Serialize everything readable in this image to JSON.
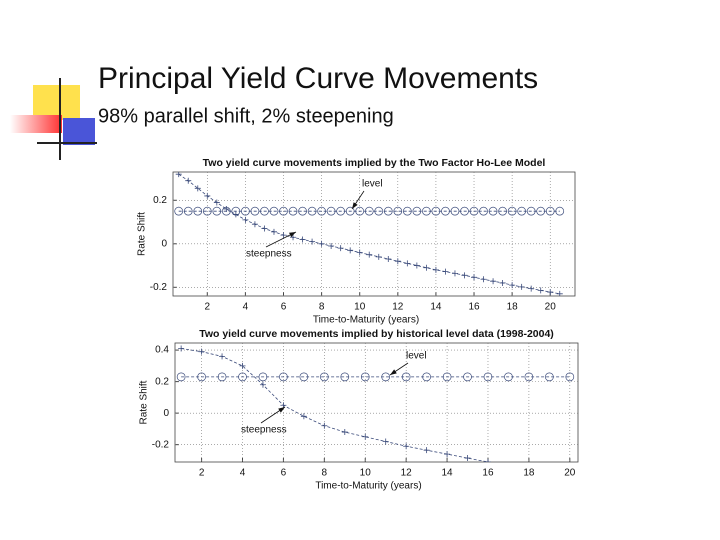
{
  "header": {
    "title": "Principal Yield Curve Movements",
    "subtitle": "98% parallel shift, 2% steepening"
  },
  "chart_data": [
    {
      "type": "line",
      "title": "Two yield curve movements implied by the Two Factor Ho-Lee Model",
      "x_label": "Time-to-Maturity (years)",
      "y_label": "Rate Shift",
      "xlim": [
        0.2,
        21.3
      ],
      "xticks": [
        2,
        4,
        6,
        8,
        10,
        12,
        14,
        16,
        18,
        20
      ],
      "ylim": [
        -0.24,
        0.33
      ],
      "yticks": [
        -0.2,
        0,
        0.2
      ],
      "grid": true,
      "series": [
        {
          "name": "level",
          "color": "#3a4a7a",
          "marker": "circle",
          "x": [
            0.5,
            1,
            1.5,
            2,
            2.5,
            3,
            3.5,
            4,
            4.5,
            5,
            5.5,
            6,
            6.5,
            7,
            7.5,
            8,
            8.5,
            9,
            9.5,
            10,
            10.5,
            11,
            11.5,
            12,
            12.5,
            13,
            13.5,
            14,
            14.5,
            15,
            15.5,
            16,
            16.5,
            17,
            17.5,
            18,
            18.5,
            19,
            19.5,
            20,
            20.5
          ],
          "values": [
            0.15,
            0.15,
            0.15,
            0.15,
            0.15,
            0.15,
            0.15,
            0.15,
            0.15,
            0.15,
            0.15,
            0.15,
            0.15,
            0.15,
            0.15,
            0.15,
            0.15,
            0.15,
            0.15,
            0.15,
            0.15,
            0.15,
            0.15,
            0.15,
            0.15,
            0.15,
            0.15,
            0.15,
            0.15,
            0.15,
            0.15,
            0.15,
            0.15,
            0.15,
            0.15,
            0.15,
            0.15,
            0.15,
            0.15,
            0.15,
            0.15
          ]
        },
        {
          "name": "steepness",
          "color": "#3a4a7a",
          "marker": "plus",
          "x": [
            0.5,
            1,
            1.5,
            2,
            2.5,
            3,
            3.5,
            4,
            4.5,
            5,
            5.5,
            6,
            6.5,
            7,
            7.5,
            8,
            8.5,
            9,
            9.5,
            10,
            10.5,
            11,
            11.5,
            12,
            12.5,
            13,
            13.5,
            14,
            14.5,
            15,
            15.5,
            16,
            16.5,
            17,
            17.5,
            18,
            18.5,
            19,
            19.5,
            20,
            20.5
          ],
          "values": [
            0.32,
            0.29,
            0.255,
            0.22,
            0.19,
            0.16,
            0.135,
            0.11,
            0.09,
            0.07,
            0.055,
            0.04,
            0.03,
            0.02,
            0.01,
            0.0,
            -0.01,
            -0.02,
            -0.03,
            -0.04,
            -0.05,
            -0.06,
            -0.07,
            -0.08,
            -0.09,
            -0.1,
            -0.11,
            -0.12,
            -0.128,
            -0.136,
            -0.145,
            -0.154,
            -0.163,
            -0.172,
            -0.18,
            -0.19,
            -0.198,
            -0.206,
            -0.214,
            -0.222,
            -0.23
          ]
        }
      ],
      "annotations": [
        {
          "text": "level"
        },
        {
          "text": "steepness"
        }
      ]
    },
    {
      "type": "line",
      "title": "Two yield curve movements implied by historical level data (1998-2004)",
      "x_label": "Time-to-Maturity (years)",
      "y_label": "Rate Shift",
      "xlim": [
        0.7,
        20.4
      ],
      "xticks": [
        2,
        4,
        6,
        8,
        10,
        12,
        14,
        16,
        18,
        20
      ],
      "ylim": [
        -0.31,
        0.445
      ],
      "yticks": [
        -0.2,
        0,
        0.2,
        0.4
      ],
      "grid": true,
      "series": [
        {
          "name": "level",
          "color": "#3a4a7a",
          "marker": "circle",
          "x": [
            1,
            2,
            3,
            4,
            5,
            6,
            7,
            8,
            9,
            10,
            11,
            12,
            13,
            14,
            15,
            16,
            17,
            18,
            19,
            20
          ],
          "values": [
            0.23,
            0.23,
            0.23,
            0.23,
            0.23,
            0.23,
            0.23,
            0.23,
            0.23,
            0.23,
            0.23,
            0.23,
            0.23,
            0.23,
            0.23,
            0.23,
            0.23,
            0.23,
            0.23,
            0.23
          ]
        },
        {
          "name": "steepness",
          "color": "#3a4a7a",
          "marker": "plus",
          "x": [
            1,
            2,
            3,
            4,
            5,
            6,
            7,
            8,
            9,
            10,
            11,
            12,
            13,
            14,
            15,
            16
          ],
          "values": [
            0.41,
            0.39,
            0.36,
            0.3,
            0.18,
            0.05,
            -0.02,
            -0.08,
            -0.12,
            -0.15,
            -0.18,
            -0.21,
            -0.235,
            -0.26,
            -0.285,
            -0.31
          ]
        }
      ],
      "annotations": [
        {
          "text": "level"
        },
        {
          "text": "steepness"
        }
      ]
    }
  ]
}
